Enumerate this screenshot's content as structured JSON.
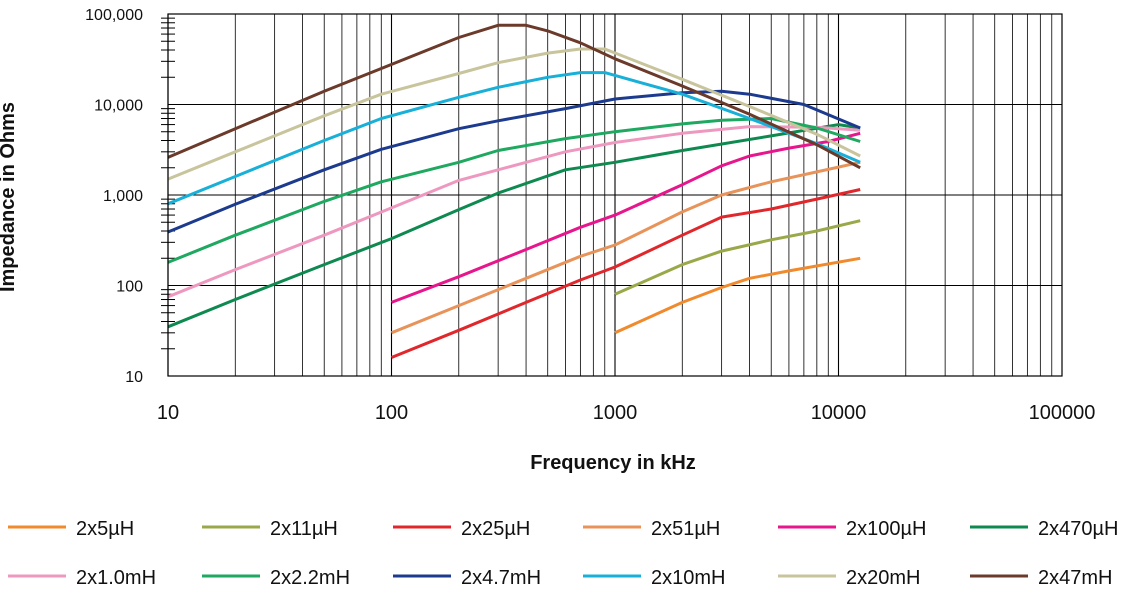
{
  "chart_data": {
    "type": "line",
    "x_scale": "log",
    "y_scale": "log",
    "xlabel": "Frequency in kHz",
    "ylabel": "Impedance in Ohms",
    "xlim": [
      10,
      100000
    ],
    "ylim": [
      10,
      100000
    ],
    "x_tick_labels": [
      "10",
      "100",
      "1000",
      "10000",
      "100000"
    ],
    "y_tick_labels": [
      "10",
      "100",
      "1,000",
      "10,000",
      "100,000"
    ],
    "grid": true,
    "legend_position": "bottom",
    "series": [
      {
        "name": "2x5µH",
        "color": "#f08a2c",
        "x": [
          1000,
          2000,
          3000,
          4000,
          6000,
          12500
        ],
        "y": [
          30,
          65,
          95,
          120,
          145,
          200
        ]
      },
      {
        "name": "2x11µH",
        "color": "#9aa84a",
        "x": [
          1000,
          2000,
          3000,
          5000,
          8000,
          12500
        ],
        "y": [
          80,
          170,
          240,
          320,
          400,
          520
        ]
      },
      {
        "name": "2x25µH",
        "color": "#e0282c",
        "x": [
          100,
          200,
          400,
          700,
          1000,
          2000,
          3000,
          5000,
          8000,
          12500
        ],
        "y": [
          16,
          32,
          65,
          115,
          160,
          360,
          570,
          700,
          900,
          1150
        ]
      },
      {
        "name": "2x51µH",
        "color": "#e8935a",
        "x": [
          100,
          200,
          400,
          700,
          1000,
          2000,
          3000,
          5000,
          8000,
          12500
        ],
        "y": [
          30,
          60,
          120,
          210,
          280,
          650,
          1000,
          1400,
          1800,
          2300
        ]
      },
      {
        "name": "2x100µH",
        "color": "#e8168c",
        "x": [
          100,
          200,
          400,
          700,
          1000,
          2000,
          3000,
          4000,
          6000,
          9000,
          12500
        ],
        "y": [
          65,
          125,
          250,
          440,
          600,
          1300,
          2100,
          2700,
          3300,
          3900,
          4800
        ]
      },
      {
        "name": "2x470µH",
        "color": "#0e8a50",
        "x": [
          10,
          20,
          50,
          100,
          200,
          300,
          600,
          1000,
          2000,
          5000,
          10000,
          12500
        ],
        "y": [
          35,
          70,
          170,
          330,
          690,
          1050,
          1900,
          2300,
          3100,
          4500,
          6000,
          5500
        ]
      },
      {
        "name": "2x1.0mH",
        "color": "#ee98c0",
        "x": [
          10,
          20,
          50,
          100,
          200,
          300,
          600,
          1000,
          2000,
          4000,
          8000,
          12500
        ],
        "y": [
          75,
          150,
          360,
          720,
          1450,
          1900,
          3000,
          3800,
          4800,
          5700,
          5600,
          5200
        ]
      },
      {
        "name": "2x2.2mH",
        "color": "#1ea860",
        "x": [
          10,
          20,
          50,
          90,
          200,
          300,
          600,
          1000,
          2000,
          3000,
          5000,
          8000,
          12500
        ],
        "y": [
          180,
          360,
          850,
          1400,
          2300,
          3100,
          4200,
          5000,
          6100,
          6700,
          7000,
          5500,
          3900
        ]
      },
      {
        "name": "2x4.7mH",
        "color": "#1c3b8e",
        "x": [
          10,
          20,
          50,
          90,
          200,
          300,
          600,
          1000,
          2000,
          3000,
          4000,
          7000,
          12500
        ],
        "y": [
          390,
          790,
          1900,
          3200,
          5400,
          6600,
          9000,
          11500,
          13500,
          14000,
          13000,
          10000,
          5500
        ]
      },
      {
        "name": "2x10mH",
        "color": "#18b0d8",
        "x": [
          10,
          20,
          50,
          90,
          200,
          300,
          500,
          700,
          900,
          2000,
          4000,
          8000,
          12500
        ],
        "y": [
          800,
          1600,
          4000,
          7000,
          12000,
          15500,
          20000,
          22500,
          22500,
          13000,
          7000,
          3700,
          2300
        ]
      },
      {
        "name": "2x20mH",
        "color": "#c8c49c",
        "x": [
          10,
          20,
          50,
          90,
          200,
          300,
          500,
          700,
          900,
          2000,
          4000,
          8000,
          12500
        ],
        "y": [
          1500,
          3000,
          7500,
          13000,
          22000,
          29000,
          37000,
          41000,
          41000,
          19000,
          9500,
          4700,
          2700
        ]
      },
      {
        "name": "2x47mH",
        "color": "#6b3a2a",
        "x": [
          10,
          20,
          50,
          90,
          200,
          300,
          400,
          500,
          700,
          1000,
          2000,
          4000,
          8000,
          12500
        ],
        "y": [
          2600,
          5400,
          14000,
          25000,
          55000,
          75000,
          75000,
          65000,
          48000,
          32000,
          16000,
          7800,
          3600,
          2000
        ]
      }
    ]
  }
}
